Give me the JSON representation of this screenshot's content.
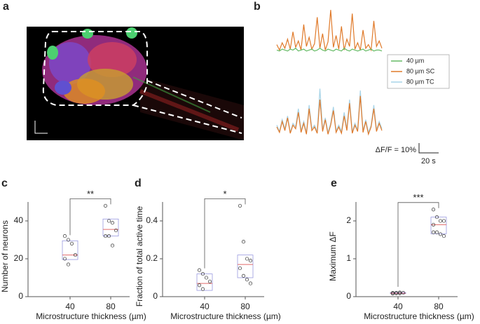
{
  "image_panel": {
    "label": "a"
  },
  "chart_data": [
    {
      "type": "traces",
      "label": "b",
      "series": [
        {
          "name": "40 µm",
          "color": "#66bb66",
          "values_top": [
            2,
            1,
            3,
            2,
            1,
            3,
            2,
            4,
            1,
            2,
            3,
            1,
            2,
            3,
            1,
            2,
            4,
            2,
            1,
            3,
            2,
            1,
            3,
            2,
            1,
            4,
            2,
            1,
            3,
            2,
            1,
            2,
            3,
            1,
            2,
            3,
            1,
            2,
            2,
            1
          ]
        },
        {
          "name": "80 µm SC",
          "color": "#e07a2a",
          "values_top": [
            8,
            2,
            10,
            4,
            14,
            3,
            22,
            5,
            12,
            2,
            30,
            6,
            16,
            3,
            9,
            38,
            4,
            20,
            2,
            11,
            46,
            5,
            18,
            3,
            28,
            2,
            14,
            6,
            42,
            3,
            10,
            2,
            24,
            4,
            8,
            2,
            34,
            6,
            12,
            4
          ],
          "values_bottom": [
            10,
            4,
            16,
            6,
            20,
            3,
            12,
            8,
            26,
            4,
            14,
            2,
            30,
            6,
            10,
            3,
            40,
            5,
            18,
            2,
            12,
            28,
            4,
            10,
            3,
            22,
            6,
            36,
            3,
            12,
            5,
            44,
            4,
            16,
            2,
            10,
            30,
            5,
            14,
            6
          ]
        },
        {
          "name": "80 µm TC",
          "color": "#a8d4e8",
          "values_bottom": [
            12,
            5,
            18,
            8,
            22,
            4,
            14,
            10,
            30,
            6,
            16,
            4,
            34,
            8,
            12,
            5,
            52,
            7,
            20,
            4,
            14,
            32,
            6,
            12,
            5,
            26,
            8,
            40,
            5,
            14,
            7,
            50,
            6,
            18,
            4,
            12,
            34,
            7,
            16,
            8
          ]
        }
      ],
      "scalebar": {
        "y_label": "ΔF/F = 10%",
        "x_label": "20 s"
      }
    },
    {
      "type": "box",
      "label": "c",
      "y_label": "Number of neurons",
      "x_label": "Microstructure thickness (µm)",
      "categories": [
        "40",
        "80"
      ],
      "ylim": [
        0,
        50
      ],
      "yticks": [
        0,
        20,
        40
      ],
      "boxes": [
        {
          "q1": 19.6,
          "median": 22,
          "q3": 29.5,
          "points": [
            32,
            30,
            28,
            22,
            20,
            17
          ]
        },
        {
          "q1": 32,
          "median": 35.5,
          "q3": 41,
          "points": [
            48,
            40,
            39,
            35,
            32,
            32,
            27
          ]
        }
      ],
      "significance": "**"
    },
    {
      "type": "box",
      "label": "d",
      "y_label": "Fraction of total active time",
      "x_label": "Microstructure thickness (µm)",
      "categories": [
        "40",
        "80"
      ],
      "ylim": [
        0,
        0.5
      ],
      "yticks": [
        0,
        0.2,
        0.4
      ],
      "boxes": [
        {
          "q1": 0.033,
          "median": 0.07,
          "q3": 0.12,
          "points": [
            0.14,
            0.12,
            0.1,
            0.08,
            0.06,
            0.04
          ]
        },
        {
          "q1": 0.1,
          "median": 0.17,
          "q3": 0.22,
          "points": [
            0.48,
            0.29,
            0.2,
            0.19,
            0.15,
            0.11,
            0.09,
            0.07
          ]
        }
      ],
      "significance": "*"
    },
    {
      "type": "box",
      "label": "e",
      "y_label": "Maximum ΔF",
      "x_label": "Microstructure thickness (µm)",
      "categories": [
        "40",
        "80"
      ],
      "ylim": [
        0,
        2.5
      ],
      "yticks": [
        0,
        1,
        2
      ],
      "boxes": [
        {
          "q1": 0.08,
          "median": 0.09,
          "q3": 0.11,
          "points": [
            0.1,
            0.09,
            0.11,
            0.1,
            0.08,
            0.1,
            0.09
          ]
        },
        {
          "q1": 1.66,
          "median": 1.9,
          "q3": 2.1,
          "points": [
            2.3,
            2.1,
            2.0,
            2.0,
            1.9,
            1.7,
            1.65,
            1.6,
            1.7
          ]
        }
      ],
      "significance": "***"
    }
  ]
}
